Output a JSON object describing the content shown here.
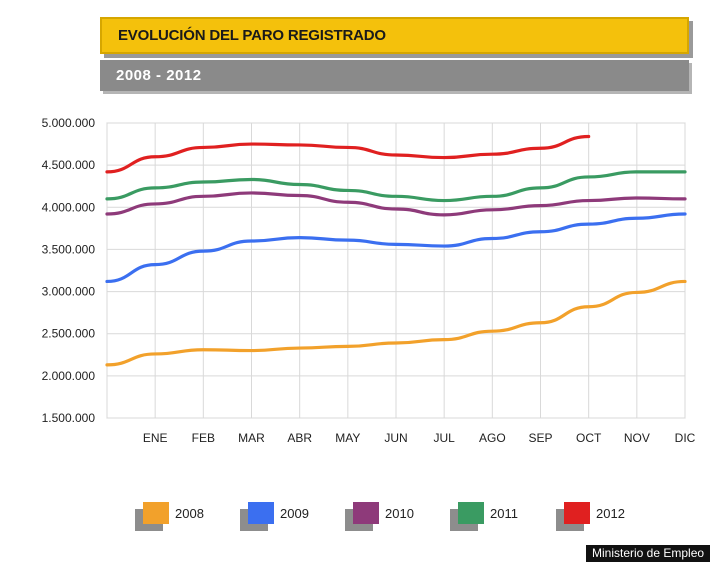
{
  "header": {
    "title": "EVOLUCIÓN DEL PARO REGISTRADO",
    "subtitle": "2008 - 2012"
  },
  "source": "Ministerio de Empleo",
  "chart_data": {
    "type": "line",
    "categories": [
      "",
      "ENE",
      "FEB",
      "MAR",
      "ABR",
      "MAY",
      "JUN",
      "JUL",
      "AGO",
      "SEP",
      "OCT",
      "NOV",
      "DIC"
    ],
    "ylim": [
      1500000,
      5000000
    ],
    "yticks": [
      1500000,
      2000000,
      2500000,
      3000000,
      3500000,
      4000000,
      4500000,
      5000000
    ],
    "ytick_labels": [
      "1.500.000",
      "2.000.000",
      "2.500.000",
      "3.000.000",
      "3.500.000",
      "4.000.000",
      "4.500.000",
      "5.000.000"
    ],
    "grid": true,
    "legend_position": "bottom",
    "series": [
      {
        "name": "2008",
        "color": "#f2a12b",
        "values": [
          2130000,
          2260000,
          2310000,
          2300000,
          2330000,
          2350000,
          2390000,
          2430000,
          2530000,
          2630000,
          2820000,
          2990000,
          3120000
        ]
      },
      {
        "name": "2009",
        "color": "#3b6ff0",
        "values": [
          3120000,
          3320000,
          3480000,
          3600000,
          3640000,
          3610000,
          3560000,
          3540000,
          3630000,
          3710000,
          3800000,
          3870000,
          3920000
        ]
      },
      {
        "name": "2010",
        "color": "#8e3a7a",
        "values": [
          3920000,
          4040000,
          4130000,
          4170000,
          4140000,
          4060000,
          3980000,
          3910000,
          3970000,
          4020000,
          4080000,
          4110000,
          4100000
        ]
      },
      {
        "name": "2011",
        "color": "#3a9b62",
        "values": [
          4100000,
          4230000,
          4300000,
          4330000,
          4270000,
          4200000,
          4130000,
          4080000,
          4130000,
          4230000,
          4360000,
          4420000,
          4420000
        ]
      },
      {
        "name": "2012",
        "color": "#e02020",
        "values": [
          4420000,
          4600000,
          4710000,
          4750000,
          4740000,
          4710000,
          4620000,
          4590000,
          4630000,
          4700000,
          4840000,
          null,
          null
        ]
      }
    ]
  }
}
